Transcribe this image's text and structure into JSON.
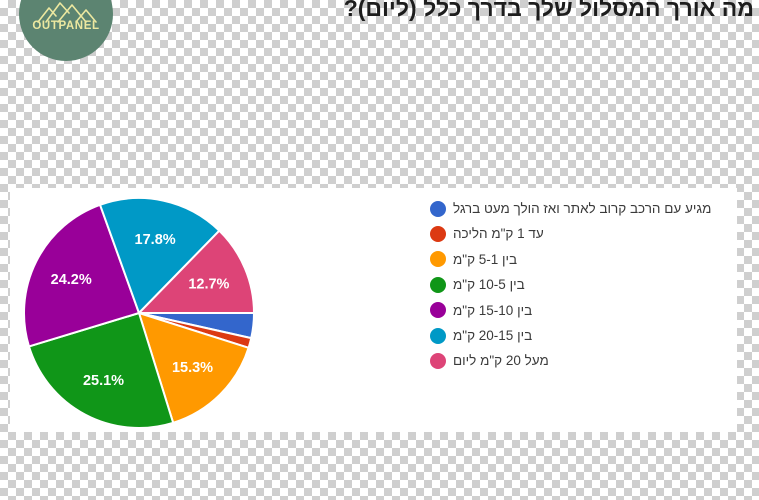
{
  "logo": {
    "brand": "OUTPANEL"
  },
  "title": "מה אורך המסלול שלך בדרך כלל (ליום)?",
  "chart_data": {
    "type": "pie",
    "title": "מה אורך המסלול שלך בדרך כלל (ליום)?",
    "legend_position": "right",
    "start_angle_deg": 0,
    "direction": "clockwise",
    "slice_border_color": "#ffffff",
    "slices": [
      {
        "label": "מגיע עם הרכב קרוב לאתר ואז הולך מעט ברגל",
        "value_pct": 3.5,
        "color": "#3366CC",
        "pct_label": null
      },
      {
        "label": "עד 1 ק\"מ הליכה",
        "value_pct": 1.4,
        "color": "#DC3912",
        "pct_label": null
      },
      {
        "label": "בין 5-1 ק\"מ",
        "value_pct": 15.3,
        "color": "#FF9900",
        "pct_label": "15.3%"
      },
      {
        "label": "בין 10-5 ק\"מ",
        "value_pct": 25.1,
        "color": "#109618",
        "pct_label": "25.1%"
      },
      {
        "label": "בין 15-10 ק\"מ",
        "value_pct": 24.2,
        "color": "#990099",
        "pct_label": "24.2%"
      },
      {
        "label": "בין 20-15 ק\"מ",
        "value_pct": 17.8,
        "color": "#0099C6",
        "pct_label": "17.8%"
      },
      {
        "label": "מעל 20 ק\"מ ליום",
        "value_pct": 12.7,
        "color": "#DD4477",
        "pct_label": "12.7%"
      }
    ]
  }
}
